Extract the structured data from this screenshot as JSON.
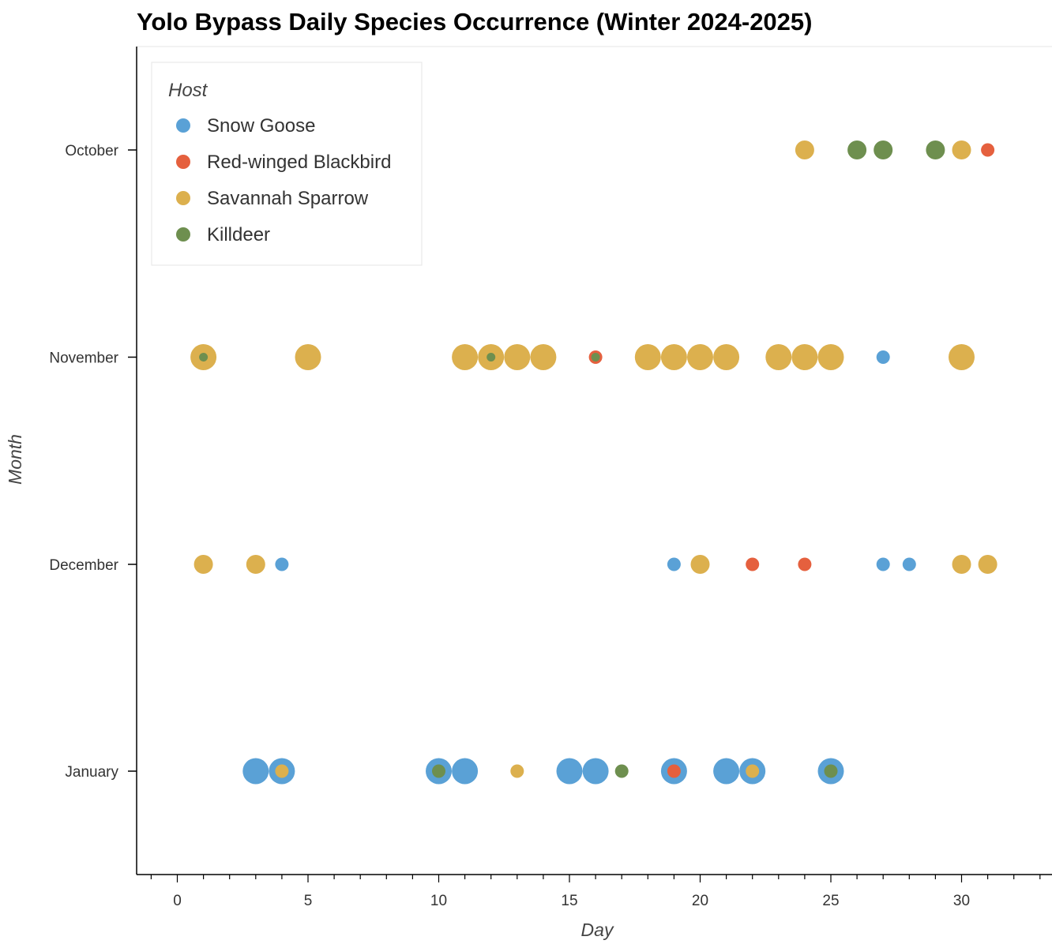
{
  "chart_data": {
    "type": "scatter",
    "title": "Yolo Bypass Daily Species Occurrence (Winter 2024-2025)",
    "xlabel": "Day",
    "ylabel": "Month",
    "xlim": [
      -1.1,
      33.3
    ],
    "x_ticks": [
      0,
      5,
      10,
      15,
      20,
      25,
      30
    ],
    "categories": [
      "October",
      "November",
      "December",
      "January"
    ],
    "legend": {
      "title": "Host",
      "position": "top-left"
    },
    "grid": false,
    "series": [
      {
        "name": "Snow Goose",
        "color": "#5aa1d6",
        "points": [
          {
            "day": 27,
            "month": "November",
            "size": "small"
          },
          {
            "day": 4,
            "month": "December",
            "size": "small"
          },
          {
            "day": 19,
            "month": "December",
            "size": "small"
          },
          {
            "day": 27,
            "month": "December",
            "size": "small"
          },
          {
            "day": 28,
            "month": "December",
            "size": "small"
          },
          {
            "day": 3,
            "month": "January",
            "size": "large"
          },
          {
            "day": 4,
            "month": "January",
            "size": "large"
          },
          {
            "day": 10,
            "month": "January",
            "size": "large"
          },
          {
            "day": 11,
            "month": "January",
            "size": "large"
          },
          {
            "day": 15,
            "month": "January",
            "size": "large"
          },
          {
            "day": 16,
            "month": "January",
            "size": "large"
          },
          {
            "day": 19,
            "month": "January",
            "size": "large"
          },
          {
            "day": 21,
            "month": "January",
            "size": "large"
          },
          {
            "day": 22,
            "month": "January",
            "size": "large"
          },
          {
            "day": 25,
            "month": "January",
            "size": "large"
          }
        ]
      },
      {
        "name": "Red-winged Blackbird",
        "color": "#e5603e",
        "points": [
          {
            "day": 31,
            "month": "October",
            "size": "small"
          },
          {
            "day": 16,
            "month": "November",
            "size": "small"
          },
          {
            "day": 22,
            "month": "December",
            "size": "small"
          },
          {
            "day": 24,
            "month": "December",
            "size": "small"
          },
          {
            "day": 19,
            "month": "January",
            "size": "small"
          }
        ]
      },
      {
        "name": "Savannah Sparrow",
        "color": "#dcb04e",
        "points": [
          {
            "day": 24,
            "month": "October",
            "size": "medium"
          },
          {
            "day": 30,
            "month": "October",
            "size": "medium"
          },
          {
            "day": 1,
            "month": "November",
            "size": "large"
          },
          {
            "day": 5,
            "month": "November",
            "size": "large"
          },
          {
            "day": 11,
            "month": "November",
            "size": "large"
          },
          {
            "day": 12,
            "month": "November",
            "size": "large"
          },
          {
            "day": 13,
            "month": "November",
            "size": "large"
          },
          {
            "day": 14,
            "month": "November",
            "size": "large"
          },
          {
            "day": 18,
            "month": "November",
            "size": "large"
          },
          {
            "day": 19,
            "month": "November",
            "size": "large"
          },
          {
            "day": 20,
            "month": "November",
            "size": "large"
          },
          {
            "day": 21,
            "month": "November",
            "size": "large"
          },
          {
            "day": 23,
            "month": "November",
            "size": "large"
          },
          {
            "day": 24,
            "month": "November",
            "size": "large"
          },
          {
            "day": 25,
            "month": "November",
            "size": "large"
          },
          {
            "day": 30,
            "month": "November",
            "size": "large"
          },
          {
            "day": 1,
            "month": "December",
            "size": "medium"
          },
          {
            "day": 3,
            "month": "December",
            "size": "medium"
          },
          {
            "day": 20,
            "month": "December",
            "size": "medium"
          },
          {
            "day": 30,
            "month": "December",
            "size": "medium"
          },
          {
            "day": 31,
            "month": "December",
            "size": "medium"
          },
          {
            "day": 4,
            "month": "January",
            "size": "small"
          },
          {
            "day": 13,
            "month": "January",
            "size": "small"
          },
          {
            "day": 22,
            "month": "January",
            "size": "small"
          }
        ]
      },
      {
        "name": "Killdeer",
        "color": "#6e8f4f",
        "points": [
          {
            "day": 26,
            "month": "October",
            "size": "medium"
          },
          {
            "day": 27,
            "month": "October",
            "size": "medium"
          },
          {
            "day": 29,
            "month": "October",
            "size": "medium"
          },
          {
            "day": 1,
            "month": "November",
            "size": "tiny"
          },
          {
            "day": 12,
            "month": "November",
            "size": "tiny"
          },
          {
            "day": 16,
            "month": "November",
            "size": "tiny"
          },
          {
            "day": 10,
            "month": "January",
            "size": "small"
          },
          {
            "day": 17,
            "month": "January",
            "size": "small"
          },
          {
            "day": 25,
            "month": "January",
            "size": "small"
          }
        ]
      }
    ]
  }
}
